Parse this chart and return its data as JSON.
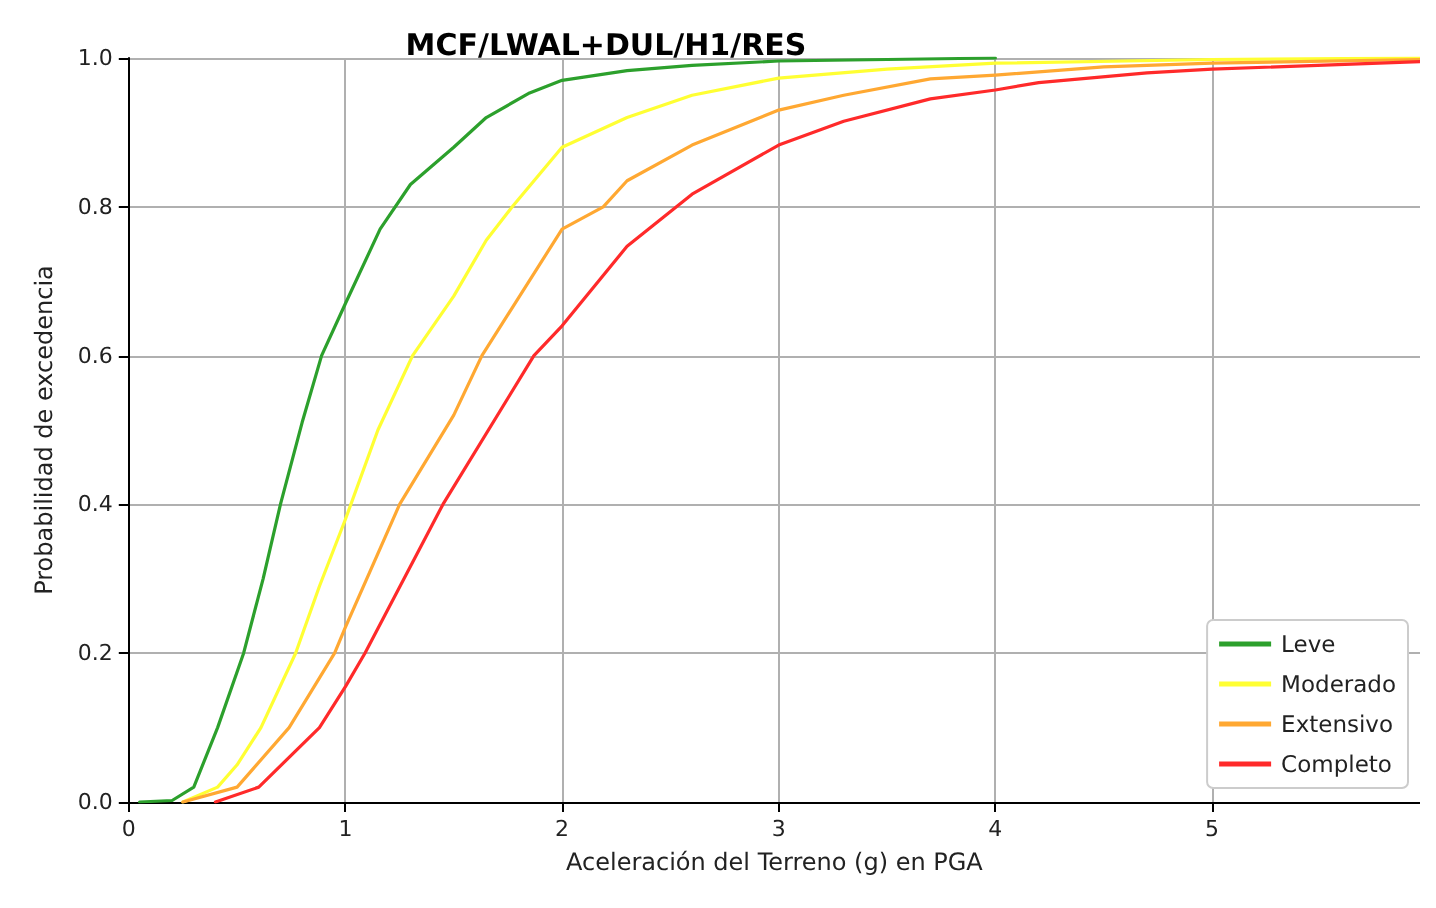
{
  "chart_data": {
    "type": "line",
    "title": "MCF/LWAL+DUL/H1/RES",
    "xlabel": "Aceleración del Terreno (g) en PGA",
    "ylabel": "Probabilidad de excedencia",
    "xlim": [
      0,
      5.96
    ],
    "xticks": [
      0,
      1,
      2,
      3,
      4,
      5
    ],
    "ylim": [
      0,
      1
    ],
    "yticks": [
      {
        "value": 0,
        "label": "0.0"
      },
      {
        "value": 0.2,
        "label": "0.2"
      },
      {
        "value": 0.4,
        "label": "0.4"
      },
      {
        "value": 0.6,
        "label": "0.6"
      },
      {
        "value": 0.8,
        "label": "0.8"
      },
      {
        "value": 1,
        "label": "1.0"
      }
    ],
    "grid": true,
    "legend": "bottom right",
    "marker": "none",
    "line_style": "solid",
    "series": [
      {
        "name": "Leve",
        "color": "#2ca02c",
        "x": [
          0.05,
          0.2,
          0.3,
          0.41,
          0.53,
          0.62,
          0.7,
          0.8,
          0.89,
          1,
          1.16,
          1.3,
          1.5,
          1.65,
          1.85,
          2,
          2.3,
          2.6,
          3,
          4
        ],
        "values": [
          0,
          0.002,
          0.02,
          0.1,
          0.2,
          0.3,
          0.4,
          0.51,
          0.6,
          0.67,
          0.77,
          0.83,
          0.88,
          0.92,
          0.953,
          0.97,
          0.983,
          0.99,
          0.996,
          1
        ]
      },
      {
        "name": "Moderado",
        "color": "#ffff33",
        "x": [
          0.25,
          0.41,
          0.5,
          0.61,
          0.77,
          0.88,
          1,
          1.15,
          1.31,
          1.5,
          1.65,
          1.77,
          2,
          2.3,
          2.6,
          3,
          3.5,
          4,
          5,
          5.96
        ],
        "values": [
          0,
          0.02,
          0.05,
          0.1,
          0.2,
          0.29,
          0.38,
          0.5,
          0.6,
          0.68,
          0.755,
          0.8,
          0.88,
          0.92,
          0.95,
          0.973,
          0.985,
          0.993,
          0.998,
          1
        ]
      },
      {
        "name": "Extensivo",
        "color": "#ffa832",
        "x": [
          0.25,
          0.5,
          0.74,
          0.95,
          1,
          1.25,
          1.5,
          1.63,
          2,
          2.19,
          2.3,
          2.6,
          3,
          3.3,
          3.7,
          4,
          4.5,
          5,
          5.96
        ],
        "values": [
          0,
          0.02,
          0.1,
          0.2,
          0.235,
          0.4,
          0.52,
          0.6,
          0.77,
          0.8,
          0.835,
          0.883,
          0.93,
          0.95,
          0.972,
          0.977,
          0.988,
          0.993,
          0.998
        ]
      },
      {
        "name": "Completo",
        "color": "#ff2a2a",
        "x": [
          0.4,
          0.6,
          0.88,
          1,
          1.09,
          1.45,
          1.87,
          2,
          2.3,
          2.6,
          3,
          3.3,
          3.7,
          4,
          4.2,
          4.7,
          5,
          5.96
        ],
        "values": [
          0,
          0.02,
          0.1,
          0.155,
          0.2,
          0.4,
          0.6,
          0.64,
          0.747,
          0.817,
          0.883,
          0.915,
          0.945,
          0.957,
          0.967,
          0.98,
          0.985,
          0.995
        ]
      }
    ]
  }
}
